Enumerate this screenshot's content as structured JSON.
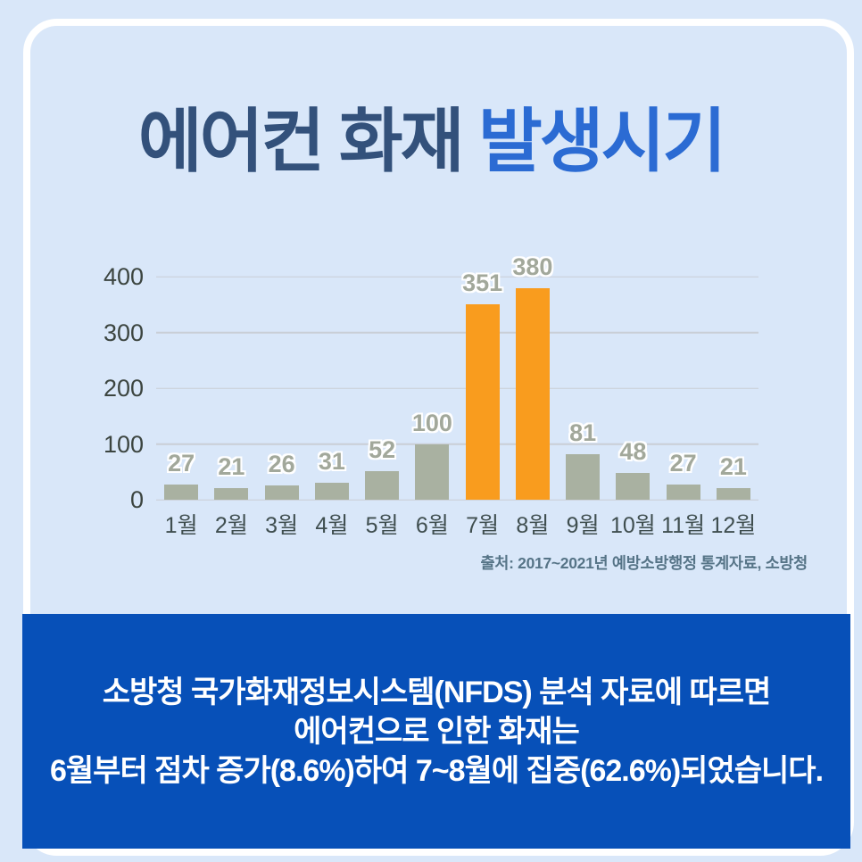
{
  "page": {
    "title": {
      "part1": "에어컨 화재 ",
      "part2": "발생시기"
    },
    "source": "출처: 2017~2021년 예방소방행정  통계자료, 소방청",
    "footer": {
      "line1": "소방청 국가화재정보시스템(NFDS) 분석 자료에 따르면",
      "line2": "에어컨으로 인한 화재는",
      "line3": "6월부터 점차 증가(8.6%)하여 7~8월에 집중(62.6%)되었습니다."
    }
  },
  "colors": {
    "background": "#d9e7f9",
    "frame": "#ffffff",
    "title_navy": "#33517b",
    "title_blue": "#2b6bd3",
    "bar_default": "#a9b1a1",
    "bar_highlight": "#f99c1e",
    "value_label": "#a2a89b",
    "axis_label": "#3c4540",
    "month_label": "#3f4e4f",
    "gridline": "#c9ced6",
    "source_text": "#567487",
    "band_blue": "#0750b8",
    "band_text": "#ffffff"
  },
  "chart_data": {
    "type": "bar",
    "title": "에어컨 화재 발생시기",
    "categories": [
      "1월",
      "2월",
      "3월",
      "4월",
      "5월",
      "6월",
      "7월",
      "8월",
      "9월",
      "10월",
      "11월",
      "12월"
    ],
    "values": [
      27,
      21,
      26,
      31,
      52,
      100,
      351,
      380,
      81,
      48,
      27,
      21
    ],
    "highlighted_categories": [
      "7월",
      "8월"
    ],
    "highlight_color": "#f99c1e",
    "default_color": "#a9b1a1",
    "xlabel": "",
    "ylabel": "",
    "y_ticks": [
      0,
      100,
      200,
      300,
      400
    ],
    "ylim": [
      0,
      400
    ],
    "grid": true,
    "legend": false,
    "value_labels": true
  }
}
